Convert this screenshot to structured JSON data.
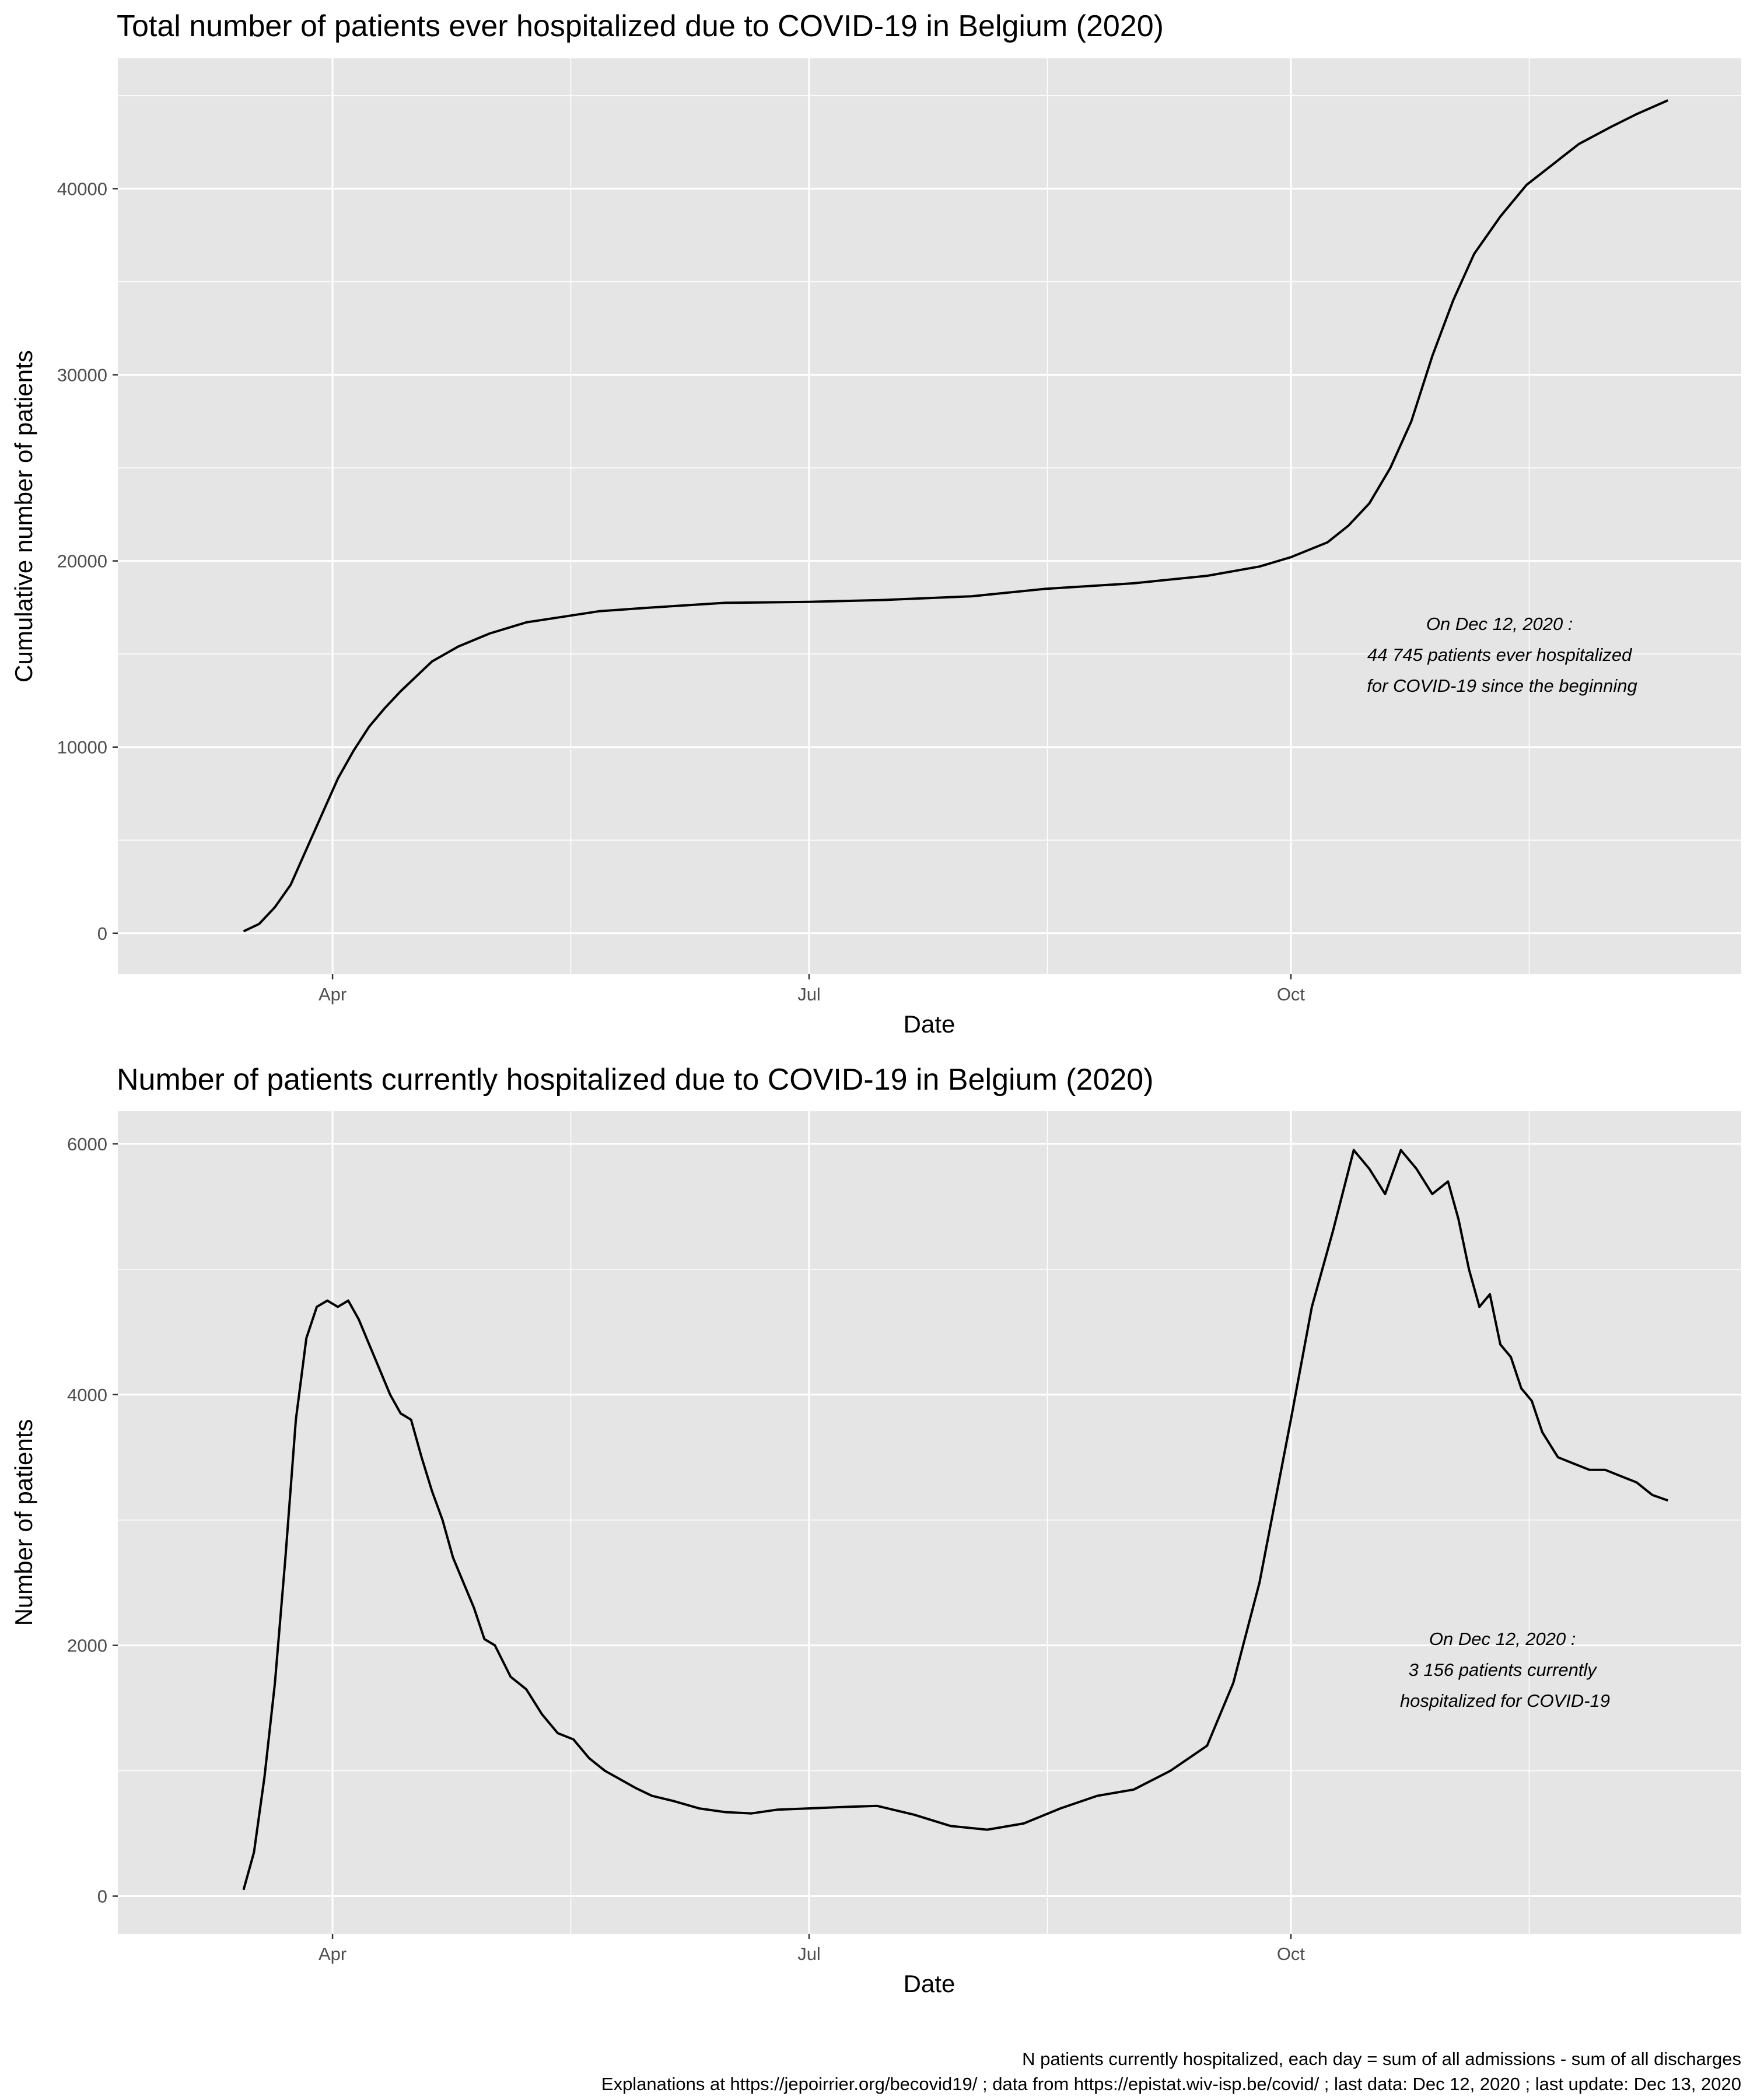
{
  "chart_data": [
    {
      "type": "line",
      "title": "Total number of patients ever hospitalized due to COVID-19 in Belgium (2020)",
      "xlabel": "Date",
      "ylabel": "Cumulative number of patients",
      "x_ticks": [
        "Apr",
        "Jul",
        "Oct"
      ],
      "y_ticks": [
        "0",
        "10000",
        "20000",
        "30000",
        "40000"
      ],
      "xlim": [
        "2020-02-20",
        "2020-12-26"
      ],
      "ylim": [
        -2200,
        47000
      ],
      "grid": true,
      "annotation": [
        "On Dec 12, 2020 :",
        "44 745 patients ever hospitalized",
        "for COVID-19 since the beginning"
      ],
      "x": [
        "2020-03-15",
        "2020-03-18",
        "2020-03-21",
        "2020-03-24",
        "2020-03-27",
        "2020-03-30",
        "2020-04-02",
        "2020-04-05",
        "2020-04-08",
        "2020-04-11",
        "2020-04-14",
        "2020-04-17",
        "2020-04-20",
        "2020-04-25",
        "2020-05-01",
        "2020-05-08",
        "2020-05-15",
        "2020-05-22",
        "2020-06-01",
        "2020-06-15",
        "2020-07-01",
        "2020-07-15",
        "2020-08-01",
        "2020-08-15",
        "2020-09-01",
        "2020-09-15",
        "2020-09-25",
        "2020-10-01",
        "2020-10-08",
        "2020-10-12",
        "2020-10-16",
        "2020-10-20",
        "2020-10-24",
        "2020-10-28",
        "2020-11-01",
        "2020-11-05",
        "2020-11-10",
        "2020-11-15",
        "2020-11-20",
        "2020-11-25",
        "2020-12-01",
        "2020-12-06",
        "2020-12-12"
      ],
      "values": [
        100,
        500,
        1400,
        2600,
        4500,
        6400,
        8300,
        9800,
        11100,
        12100,
        13000,
        13800,
        14600,
        15400,
        16100,
        16700,
        17000,
        17300,
        17500,
        17750,
        17800,
        17900,
        18100,
        18500,
        18800,
        19200,
        19700,
        20200,
        21000,
        21900,
        23100,
        25000,
        27500,
        31000,
        34000,
        36500,
        38500,
        40200,
        41300,
        42400,
        43300,
        44000,
        44745
      ]
    },
    {
      "type": "line",
      "title": "Number of patients currently hospitalized due to COVID-19 in Belgium (2020)",
      "xlabel": "Date",
      "ylabel": "Number of patients",
      "x_ticks": [
        "Apr",
        "Jul",
        "Oct"
      ],
      "y_ticks": [
        "0",
        "2000",
        "4000",
        "6000"
      ],
      "xlim": [
        "2020-02-20",
        "2020-12-26"
      ],
      "ylim": [
        -300,
        6260
      ],
      "grid": true,
      "annotation": [
        "On Dec 12, 2020 :",
        "3 156 patients currently",
        "hospitalized for COVID-19"
      ],
      "x": [
        "2020-03-15",
        "2020-03-17",
        "2020-03-19",
        "2020-03-21",
        "2020-03-23",
        "2020-03-25",
        "2020-03-27",
        "2020-03-29",
        "2020-03-31",
        "2020-04-02",
        "2020-04-04",
        "2020-04-06",
        "2020-04-08",
        "2020-04-10",
        "2020-04-12",
        "2020-04-14",
        "2020-04-16",
        "2020-04-18",
        "2020-04-20",
        "2020-04-22",
        "2020-04-24",
        "2020-04-26",
        "2020-04-28",
        "2020-04-30",
        "2020-05-02",
        "2020-05-05",
        "2020-05-08",
        "2020-05-11",
        "2020-05-14",
        "2020-05-17",
        "2020-05-20",
        "2020-05-23",
        "2020-05-26",
        "2020-05-29",
        "2020-06-01",
        "2020-06-05",
        "2020-06-10",
        "2020-06-15",
        "2020-06-20",
        "2020-06-25",
        "2020-07-01",
        "2020-07-07",
        "2020-07-14",
        "2020-07-21",
        "2020-07-28",
        "2020-08-04",
        "2020-08-11",
        "2020-08-18",
        "2020-08-25",
        "2020-09-01",
        "2020-09-08",
        "2020-09-15",
        "2020-09-20",
        "2020-09-25",
        "2020-10-01",
        "2020-10-05",
        "2020-10-09",
        "2020-10-13",
        "2020-10-16",
        "2020-10-19",
        "2020-10-22",
        "2020-10-25",
        "2020-10-28",
        "2020-10-31",
        "2020-11-02",
        "2020-11-04",
        "2020-11-06",
        "2020-11-08",
        "2020-11-10",
        "2020-11-12",
        "2020-11-14",
        "2020-11-16",
        "2020-11-18",
        "2020-11-21",
        "2020-11-24",
        "2020-11-27",
        "2020-11-30",
        "2020-12-03",
        "2020-12-06",
        "2020-12-09",
        "2020-12-12"
      ],
      "values": [
        50,
        350,
        950,
        1700,
        2700,
        3800,
        4450,
        4700,
        4750,
        4700,
        4750,
        4600,
        4400,
        4200,
        4000,
        3850,
        3800,
        3500,
        3230,
        3000,
        2700,
        2500,
        2300,
        2050,
        2000,
        1750,
        1650,
        1450,
        1300,
        1250,
        1100,
        1000,
        930,
        860,
        800,
        760,
        700,
        670,
        660,
        690,
        700,
        710,
        720,
        650,
        560,
        530,
        580,
        700,
        800,
        850,
        1000,
        1200,
        1700,
        2500,
        3800,
        4700,
        5300,
        5950,
        5800,
        5600,
        5950,
        5800,
        5600,
        5700,
        5400,
        5000,
        4700,
        4800,
        4400,
        4300,
        4050,
        3950,
        3700,
        3500,
        3450,
        3400,
        3400,
        3350,
        3300,
        3200,
        3156
      ]
    }
  ],
  "caption": [
    "N patients currently hospitalized, each day = sum of all admissions - sum of all discharges",
    "Explanations at https://jepoirrier.org/becovid19/ ; data from https://epistat.wiv-isp.be/covid/ ; last data: Dec 12, 2020  ; last update: Dec 13, 2020"
  ],
  "colors": {
    "panel": "#e5e5e5",
    "grid": "#ffffff",
    "line": "#000000",
    "tick": "#4d4d4d"
  }
}
